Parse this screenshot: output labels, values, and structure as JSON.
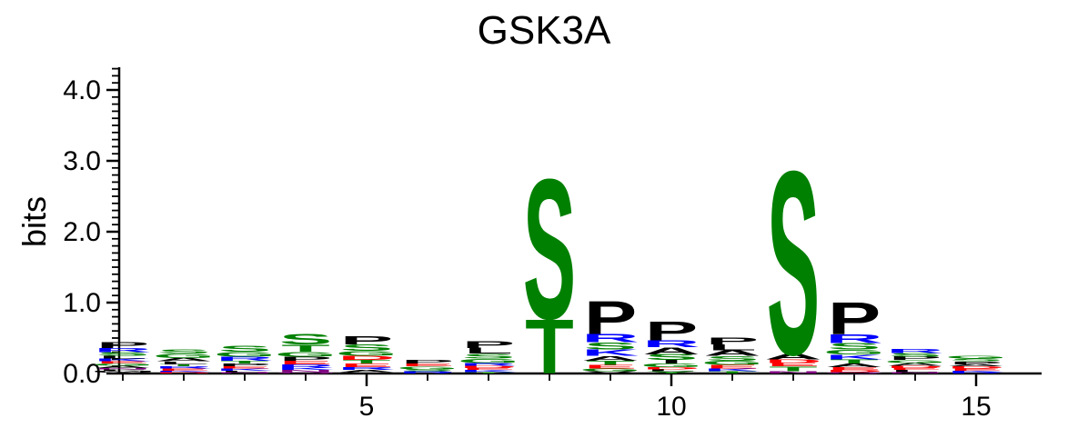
{
  "chart_data": {
    "type": "sequence-logo",
    "title": "GSK3A",
    "ylabel": "bits",
    "ylim": [
      0,
      4.3
    ],
    "yticks": [
      "0.0",
      "1.0",
      "2.0",
      "3.0",
      "4.0"
    ],
    "xticks": [
      "5",
      "10",
      "15"
    ],
    "xtick_values": [
      5,
      10,
      15
    ],
    "positions": 15,
    "colors": {
      "S": "#008000",
      "T": "#008000",
      "G": "#008000",
      "C": "#008000",
      "Y": "#008000",
      "P": "#000000",
      "A": "#000000",
      "L": "#000000",
      "V": "#000000",
      "I": "#000000",
      "M": "#000000",
      "F": "#000000",
      "W": "#000000",
      "R": "#0000ff",
      "K": "#0000ff",
      "H": "#0000ff",
      "D": "#ff0000",
      "E": "#ff0000",
      "N": "#800080",
      "Q": "#800080"
    },
    "stacks": [
      [
        {
          "letter": "V",
          "bits": 0.02
        },
        {
          "letter": "M",
          "bits": 0.02
        },
        {
          "letter": "F",
          "bits": 0.02
        },
        {
          "letter": "N",
          "bits": 0.02
        },
        {
          "letter": "A",
          "bits": 0.03
        },
        {
          "letter": "G",
          "bits": 0.03
        },
        {
          "letter": "E",
          "bits": 0.03
        },
        {
          "letter": "K",
          "bits": 0.04
        },
        {
          "letter": "L",
          "bits": 0.04
        },
        {
          "letter": "S",
          "bits": 0.05
        },
        {
          "letter": "R",
          "bits": 0.06
        },
        {
          "letter": "P",
          "bits": 0.08
        }
      ],
      [
        {
          "letter": "D",
          "bits": 0.02
        },
        {
          "letter": "K",
          "bits": 0.02
        },
        {
          "letter": "E",
          "bits": 0.03
        },
        {
          "letter": "R",
          "bits": 0.03
        },
        {
          "letter": "T",
          "bits": 0.03
        },
        {
          "letter": "L",
          "bits": 0.04
        },
        {
          "letter": "A",
          "bits": 0.05
        },
        {
          "letter": "G",
          "bits": 0.06
        },
        {
          "letter": "S",
          "bits": 0.06
        }
      ],
      [
        {
          "letter": "N",
          "bits": 0.02
        },
        {
          "letter": "L",
          "bits": 0.02
        },
        {
          "letter": "K",
          "bits": 0.03
        },
        {
          "letter": "E",
          "bits": 0.03
        },
        {
          "letter": "P",
          "bits": 0.04
        },
        {
          "letter": "T",
          "bits": 0.04
        },
        {
          "letter": "R",
          "bits": 0.06
        },
        {
          "letter": "G",
          "bits": 0.07
        },
        {
          "letter": "S",
          "bits": 0.08
        }
      ],
      [
        {
          "letter": "Q",
          "bits": 0.02
        },
        {
          "letter": "N",
          "bits": 0.03
        },
        {
          "letter": "K",
          "bits": 0.03
        },
        {
          "letter": "R",
          "bits": 0.05
        },
        {
          "letter": "E",
          "bits": 0.05
        },
        {
          "letter": "P",
          "bits": 0.06
        },
        {
          "letter": "G",
          "bits": 0.07
        },
        {
          "letter": "T",
          "bits": 0.1
        },
        {
          "letter": "S",
          "bits": 0.15
        }
      ],
      [
        {
          "letter": "L",
          "bits": 0.02
        },
        {
          "letter": "A",
          "bits": 0.03
        },
        {
          "letter": "R",
          "bits": 0.04
        },
        {
          "letter": "E",
          "bits": 0.05
        },
        {
          "letter": "T",
          "bits": 0.05
        },
        {
          "letter": "D",
          "bits": 0.06
        },
        {
          "letter": "G",
          "bits": 0.07
        },
        {
          "letter": "S",
          "bits": 0.09
        },
        {
          "letter": "P",
          "bits": 0.12
        }
      ],
      [
        {
          "letter": "R",
          "bits": 0.03
        },
        {
          "letter": "S",
          "bits": 0.03
        },
        {
          "letter": "G",
          "bits": 0.04
        },
        {
          "letter": "E",
          "bits": 0.04
        },
        {
          "letter": "P",
          "bits": 0.05
        }
      ],
      [
        {
          "letter": "T",
          "bits": 0.02
        },
        {
          "letter": "K",
          "bits": 0.03
        },
        {
          "letter": "E",
          "bits": 0.03
        },
        {
          "letter": "D",
          "bits": 0.03
        },
        {
          "letter": "R",
          "bits": 0.04
        },
        {
          "letter": "G",
          "bits": 0.06
        },
        {
          "letter": "S",
          "bits": 0.07
        },
        {
          "letter": "L",
          "bits": 0.08
        },
        {
          "letter": "P",
          "bits": 0.1
        }
      ],
      [
        {
          "letter": "T",
          "bits": 0.78
        },
        {
          "letter": "S",
          "bits": 2.02
        }
      ],
      [
        {
          "letter": "V",
          "bits": 0.03
        },
        {
          "letter": "G",
          "bits": 0.04
        },
        {
          "letter": "E",
          "bits": 0.05
        },
        {
          "letter": "T",
          "bits": 0.06
        },
        {
          "letter": "A",
          "bits": 0.07
        },
        {
          "letter": "K",
          "bits": 0.09
        },
        {
          "letter": "S",
          "bits": 0.1
        },
        {
          "letter": "R",
          "bits": 0.12
        },
        {
          "letter": "P",
          "bits": 0.48
        }
      ],
      [
        {
          "letter": "Y",
          "bits": 0.03
        },
        {
          "letter": "L",
          "bits": 0.03
        },
        {
          "letter": "D",
          "bits": 0.03
        },
        {
          "letter": "G",
          "bits": 0.05
        },
        {
          "letter": "I",
          "bits": 0.05
        },
        {
          "letter": "S",
          "bits": 0.08
        },
        {
          "letter": "A",
          "bits": 0.1
        },
        {
          "letter": "R",
          "bits": 0.1
        },
        {
          "letter": "P",
          "bits": 0.27
        }
      ],
      [
        {
          "letter": "T",
          "bits": 0.03
        },
        {
          "letter": "K",
          "bits": 0.04
        },
        {
          "letter": "E",
          "bits": 0.05
        },
        {
          "letter": "G",
          "bits": 0.06
        },
        {
          "letter": "S",
          "bits": 0.07
        },
        {
          "letter": "A",
          "bits": 0.08
        },
        {
          "letter": "L",
          "bits": 0.08
        },
        {
          "letter": "P",
          "bits": 0.1
        }
      ],
      [
        {
          "letter": "N",
          "bits": 0.03
        },
        {
          "letter": "T",
          "bits": 0.07
        },
        {
          "letter": "E",
          "bits": 0.05
        },
        {
          "letter": "D",
          "bits": 0.05
        },
        {
          "letter": "A",
          "bits": 0.08
        },
        {
          "letter": "S",
          "bits": 2.65
        }
      ],
      [
        {
          "letter": "Q",
          "bits": 0.02
        },
        {
          "letter": "D",
          "bits": 0.03
        },
        {
          "letter": "E",
          "bits": 0.04
        },
        {
          "letter": "A",
          "bits": 0.05
        },
        {
          "letter": "T",
          "bits": 0.06
        },
        {
          "letter": "K",
          "bits": 0.07
        },
        {
          "letter": "G",
          "bits": 0.07
        },
        {
          "letter": "S",
          "bits": 0.09
        },
        {
          "letter": "R",
          "bits": 0.13
        },
        {
          "letter": "P",
          "bits": 0.46
        }
      ],
      [
        {
          "letter": "N",
          "bits": 0.02
        },
        {
          "letter": "L",
          "bits": 0.03
        },
        {
          "letter": "E",
          "bits": 0.03
        },
        {
          "letter": "D",
          "bits": 0.03
        },
        {
          "letter": "A",
          "bits": 0.04
        },
        {
          "letter": "G",
          "bits": 0.04
        },
        {
          "letter": "P",
          "bits": 0.05
        },
        {
          "letter": "S",
          "bits": 0.05
        },
        {
          "letter": "R",
          "bits": 0.06
        }
      ],
      [
        {
          "letter": "R",
          "bits": 0.02
        },
        {
          "letter": "K",
          "bits": 0.02
        },
        {
          "letter": "E",
          "bits": 0.03
        },
        {
          "letter": "D",
          "bits": 0.03
        },
        {
          "letter": "A",
          "bits": 0.03
        },
        {
          "letter": "P",
          "bits": 0.04
        },
        {
          "letter": "S",
          "bits": 0.04
        },
        {
          "letter": "G",
          "bits": 0.04
        }
      ]
    ]
  }
}
